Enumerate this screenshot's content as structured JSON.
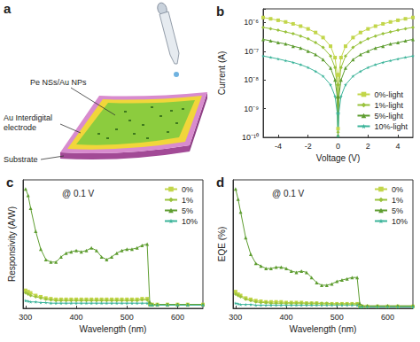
{
  "panel_a": {
    "label": "a",
    "film": "Pe NSs/Au NPs",
    "electrode": [
      "Au Interdigital",
      "electrode"
    ],
    "substrate": "Substrate"
  },
  "chart_data": [
    {
      "type": "line",
      "title": "b",
      "xlabel": "Voltage (V)",
      "ylabel": "Current (A)",
      "x": [
        -5,
        -4.5,
        -4,
        -3.5,
        -3,
        -2.5,
        -2,
        -1.5,
        -1,
        -0.5,
        -0.2,
        -0.05,
        0,
        0.05,
        0.2,
        0.5,
        1,
        1.5,
        2,
        2.5,
        3,
        3.5,
        4,
        4.5,
        5
      ],
      "xlim": [
        -5,
        5
      ],
      "xticks": [
        -4,
        -2,
        0,
        2,
        4
      ],
      "ylim": [
        1e-10,
        3e-06
      ],
      "yticks": [
        {
          "value": 1e-10,
          "label": "10⁻¹⁰"
        },
        {
          "value": 1e-09,
          "label": "10⁻⁹"
        },
        {
          "value": 1e-08,
          "label": "10⁻⁸"
        },
        {
          "value": 1e-07,
          "label": "10⁻⁷"
        },
        {
          "value": 1e-06,
          "label": "10⁻⁶"
        }
      ],
      "log": "y",
      "grid": false,
      "legend": "lower right",
      "series": [
        {
          "name": "0%-light",
          "color": "#c2d64a",
          "marker": "square",
          "values": [
            1.5e-06,
            1.35e-06,
            1.2e-06,
            1.05e-06,
            9e-07,
            7.5e-07,
            6e-07,
            4.5e-07,
            3e-07,
            1.5e-07,
            6e-08,
            1.5e-08,
            2e-10,
            1.5e-08,
            6e-08,
            1.5e-07,
            3e-07,
            4.5e-07,
            6e-07,
            7.5e-07,
            9e-07,
            1.05e-06,
            1.2e-06,
            1.35e-06,
            1.5e-06
          ]
        },
        {
          "name": "1%-light",
          "color": "#99c23c",
          "marker": "diamond",
          "values": [
            6.8e-07,
            6.1e-07,
            5.4e-07,
            4.7e-07,
            4.1e-07,
            3.4e-07,
            2.7e-07,
            2e-07,
            1.35e-07,
            6.8e-08,
            2.7e-08,
            6.8e-09,
            1.5e-10,
            6.8e-09,
            2.7e-08,
            6.8e-08,
            1.35e-07,
            2e-07,
            2.7e-07,
            3.4e-07,
            4.1e-07,
            4.7e-07,
            5.4e-07,
            6.1e-07,
            6.8e-07
          ]
        },
        {
          "name": "5%-light",
          "color": "#5e9d30",
          "marker": "triangle",
          "values": [
            2.6e-07,
            2.3e-07,
            2e-07,
            1.8e-07,
            1.5e-07,
            1.3e-07,
            1e-07,
            7.7e-08,
            5.1e-08,
            2.6e-08,
            1e-08,
            2.6e-09,
            1.2e-10,
            2.6e-09,
            1e-08,
            2.6e-08,
            5.1e-08,
            7.7e-08,
            1e-07,
            1.3e-07,
            1.5e-07,
            1.8e-07,
            2e-07,
            2.3e-07,
            2.6e-07
          ]
        },
        {
          "name": "10%-light",
          "color": "#3cb49a",
          "marker": "star",
          "values": [
            6.8e-08,
            6.1e-08,
            5.4e-08,
            4.7e-08,
            4.1e-08,
            3.4e-08,
            2.7e-08,
            2e-08,
            1.35e-08,
            6.8e-09,
            2.7e-09,
            7e-10,
            1.1e-10,
            7e-10,
            2.7e-09,
            6.8e-09,
            1.35e-08,
            2e-08,
            2.7e-08,
            3.4e-08,
            4.1e-08,
            4.7e-08,
            5.4e-08,
            6.1e-08,
            6.8e-08
          ]
        }
      ]
    },
    {
      "type": "line",
      "title": "c",
      "annotation": "@ 0.1 V",
      "xlabel": "Wavelength (nm)",
      "ylabel": "Responsivity (A/W)",
      "x": [
        300,
        305,
        310,
        320,
        330,
        340,
        350,
        360,
        370,
        380,
        390,
        400,
        410,
        420,
        430,
        440,
        450,
        460,
        470,
        480,
        490,
        500,
        510,
        520,
        530,
        540,
        545,
        550,
        560,
        580,
        600,
        620,
        650
      ],
      "xlim": [
        295,
        650
      ],
      "xticks": [
        300,
        400,
        500,
        600
      ],
      "ylim": [
        0,
        1
      ],
      "tick_labels": "x",
      "grid": false,
      "legend": "upper right",
      "series": [
        {
          "name": "0%",
          "color": "#c2d64a",
          "marker": "square",
          "values": [
            0.14,
            0.13,
            0.12,
            0.1,
            0.09,
            0.08,
            0.075,
            0.07,
            0.07,
            0.07,
            0.07,
            0.07,
            0.07,
            0.07,
            0.07,
            0.07,
            0.07,
            0.07,
            0.07,
            0.07,
            0.07,
            0.07,
            0.07,
            0.07,
            0.075,
            0.075,
            0.03,
            0.03,
            0.03,
            0.03,
            0.03,
            0.03,
            0.03
          ]
        },
        {
          "name": "1%",
          "color": "#99c23c",
          "marker": "diamond",
          "values": [
            0.12,
            0.11,
            0.1,
            0.09,
            0.08,
            0.07,
            0.065,
            0.06,
            0.06,
            0.06,
            0.06,
            0.06,
            0.06,
            0.06,
            0.06,
            0.06,
            0.06,
            0.06,
            0.06,
            0.06,
            0.06,
            0.06,
            0.06,
            0.06,
            0.065,
            0.065,
            0.03,
            0.03,
            0.03,
            0.03,
            0.03,
            0.03,
            0.03
          ]
        },
        {
          "name": "5%",
          "color": "#5e9d30",
          "marker": "triangle",
          "values": [
            0.93,
            0.88,
            0.78,
            0.6,
            0.46,
            0.38,
            0.36,
            0.36,
            0.4,
            0.43,
            0.44,
            0.45,
            0.44,
            0.45,
            0.47,
            0.45,
            0.4,
            0.38,
            0.4,
            0.43,
            0.45,
            0.46,
            0.46,
            0.47,
            0.49,
            0.5,
            0.05,
            0.03,
            0.03,
            0.03,
            0.03,
            0.03,
            0.03
          ]
        },
        {
          "name": "10%",
          "color": "#3cb49a",
          "marker": "star",
          "values": [
            0.06,
            0.055,
            0.05,
            0.05,
            0.045,
            0.045,
            0.04,
            0.04,
            0.04,
            0.04,
            0.04,
            0.04,
            0.04,
            0.04,
            0.04,
            0.04,
            0.04,
            0.04,
            0.04,
            0.04,
            0.04,
            0.04,
            0.04,
            0.04,
            0.04,
            0.04,
            0.025,
            0.025,
            0.025,
            0.025,
            0.025,
            0.025,
            0.025
          ]
        }
      ]
    },
    {
      "type": "line",
      "title": "d",
      "annotation": "@ 0.1 V",
      "xlabel": "Wavelength (nm)",
      "ylabel": "EQE (%)",
      "x": [
        300,
        305,
        310,
        320,
        330,
        340,
        350,
        360,
        370,
        380,
        390,
        400,
        410,
        420,
        430,
        440,
        450,
        460,
        470,
        480,
        490,
        500,
        510,
        520,
        530,
        540,
        545,
        550,
        560,
        580,
        600,
        620,
        650
      ],
      "xlim": [
        295,
        650
      ],
      "xticks": [
        300,
        400,
        500,
        600
      ],
      "ylim": [
        0,
        1
      ],
      "tick_labels": "x",
      "grid": false,
      "legend": "upper right",
      "series": [
        {
          "name": "0%",
          "color": "#c2d64a",
          "marker": "square",
          "values": [
            0.13,
            0.11,
            0.1,
            0.08,
            0.07,
            0.06,
            0.055,
            0.05,
            0.05,
            0.05,
            0.05,
            0.045,
            0.045,
            0.045,
            0.045,
            0.04,
            0.04,
            0.04,
            0.035,
            0.035,
            0.035,
            0.035,
            0.035,
            0.035,
            0.035,
            0.035,
            0.015,
            0.015,
            0.015,
            0.015,
            0.015,
            0.015,
            0.015
          ]
        },
        {
          "name": "1%",
          "color": "#99c23c",
          "marker": "diamond",
          "values": [
            0.11,
            0.1,
            0.09,
            0.07,
            0.06,
            0.05,
            0.045,
            0.045,
            0.04,
            0.04,
            0.04,
            0.04,
            0.04,
            0.04,
            0.04,
            0.04,
            0.04,
            0.04,
            0.04,
            0.04,
            0.035,
            0.035,
            0.035,
            0.035,
            0.035,
            0.035,
            0.015,
            0.015,
            0.015,
            0.015,
            0.015,
            0.015,
            0.015
          ]
        },
        {
          "name": "5%",
          "color": "#5e9d30",
          "marker": "triangle",
          "values": [
            0.93,
            0.85,
            0.75,
            0.55,
            0.42,
            0.35,
            0.33,
            0.31,
            0.31,
            0.32,
            0.32,
            0.31,
            0.29,
            0.28,
            0.29,
            0.28,
            0.24,
            0.2,
            0.18,
            0.18,
            0.19,
            0.21,
            0.22,
            0.23,
            0.24,
            0.24,
            0.04,
            0.02,
            0.02,
            0.02,
            0.02,
            0.02,
            0.02
          ]
        },
        {
          "name": "10%",
          "color": "#3cb49a",
          "marker": "star",
          "values": [
            0.04,
            0.035,
            0.03,
            0.03,
            0.03,
            0.025,
            0.025,
            0.025,
            0.025,
            0.025,
            0.025,
            0.025,
            0.025,
            0.025,
            0.025,
            0.025,
            0.025,
            0.025,
            0.025,
            0.025,
            0.025,
            0.025,
            0.025,
            0.025,
            0.025,
            0.025,
            0.01,
            0.01,
            0.01,
            0.01,
            0.01,
            0.01,
            0.01
          ]
        }
      ]
    }
  ]
}
